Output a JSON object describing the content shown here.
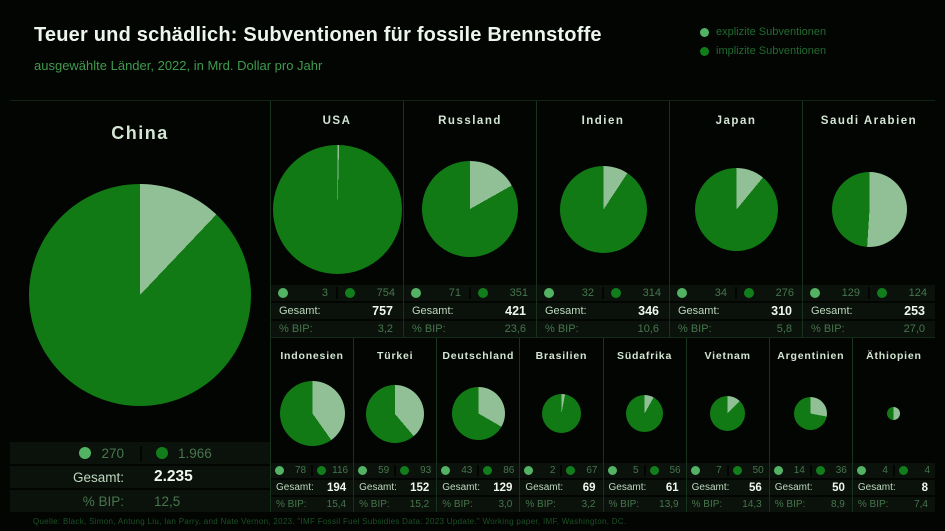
{
  "header": {
    "title": "Teuer und schädlich: Subventionen für fossile Brennstoffe",
    "subtitle": "ausgewählte Länder, 2022, in Mrd. Dollar pro Jahr"
  },
  "legend": {
    "explicit_label": "explizite Subventionen",
    "implicit_label": "implizite Subventionen"
  },
  "labels": {
    "total": "Gesamt:",
    "bip": "% BIP:"
  },
  "footer": {
    "source": "Quelle: Black, Simon, Antung Liu, Ian Parry, and Nate Vernon, 2023. \"IMF Fossil Fuel Subsidies Data: 2023 Update.\" Working paper, IMF, Washington, DC."
  },
  "chart_data": {
    "type": "pie",
    "title": "Teuer und schädlich: Subventionen für fossile Brennstoffe",
    "subtitle": "ausgewählte Länder, 2022, in Mrd. Dollar pro Jahr",
    "unit": "Mrd. Dollar pro Jahr",
    "year": "2022",
    "legend": [
      "explizite Subventionen",
      "implizite Subventionen"
    ],
    "legend_position": "top-right",
    "sizing": "pie area proportional to total; explicit slice starts at 12 o'clock clockwise",
    "colors": {
      "explicit_slice": "#92c096",
      "implicit_slice": "#117a14",
      "explicit_dot": "#53b263",
      "implicit_dot": "#117d1b",
      "background": "#020502"
    },
    "countries": [
      {
        "name": "China",
        "group": "featured",
        "explicit": 270,
        "implicit": 1966,
        "total": 2235,
        "explicit_label": "270",
        "implicit_label": "1.966",
        "total_label": "2.235",
        "bip_percent": "12,5"
      },
      {
        "name": "USA",
        "group": "row1",
        "explicit": 3,
        "implicit": 754,
        "total": 757,
        "explicit_label": "3",
        "implicit_label": "754",
        "total_label": "757",
        "bip_percent": "3,2"
      },
      {
        "name": "Russland",
        "group": "row1",
        "explicit": 71,
        "implicit": 351,
        "total": 421,
        "explicit_label": "71",
        "implicit_label": "351",
        "total_label": "421",
        "bip_percent": "23,6"
      },
      {
        "name": "Indien",
        "group": "row1",
        "explicit": 32,
        "implicit": 314,
        "total": 346,
        "explicit_label": "32",
        "implicit_label": "314",
        "total_label": "346",
        "bip_percent": "10,6"
      },
      {
        "name": "Japan",
        "group": "row1",
        "explicit": 34,
        "implicit": 276,
        "total": 310,
        "explicit_label": "34",
        "implicit_label": "276",
        "total_label": "310",
        "bip_percent": "5,8"
      },
      {
        "name": "Saudi Arabien",
        "group": "row1",
        "explicit": 129,
        "implicit": 124,
        "total": 253,
        "explicit_label": "129",
        "implicit_label": "124",
        "total_label": "253",
        "bip_percent": "27,0"
      },
      {
        "name": "Indonesien",
        "group": "row2",
        "explicit": 78,
        "implicit": 116,
        "total": 194,
        "explicit_label": "78",
        "implicit_label": "116",
        "total_label": "194",
        "bip_percent": "15,4"
      },
      {
        "name": "Türkei",
        "group": "row2",
        "explicit": 59,
        "implicit": 93,
        "total": 152,
        "explicit_label": "59",
        "implicit_label": "93",
        "total_label": "152",
        "bip_percent": "15,2"
      },
      {
        "name": "Deutschland",
        "group": "row2",
        "explicit": 43,
        "implicit": 86,
        "total": 129,
        "explicit_label": "43",
        "implicit_label": "86",
        "total_label": "129",
        "bip_percent": "3,0"
      },
      {
        "name": "Brasilien",
        "group": "row2",
        "explicit": 2,
        "implicit": 67,
        "total": 69,
        "explicit_label": "2",
        "implicit_label": "67",
        "total_label": "69",
        "bip_percent": "3,2"
      },
      {
        "name": "Südafrika",
        "group": "row2",
        "explicit": 5,
        "implicit": 56,
        "total": 61,
        "explicit_label": "5",
        "implicit_label": "56",
        "total_label": "61",
        "bip_percent": "13,9"
      },
      {
        "name": "Vietnam",
        "group": "row2",
        "explicit": 7,
        "implicit": 50,
        "total": 56,
        "explicit_label": "7",
        "implicit_label": "50",
        "total_label": "56",
        "bip_percent": "14,3"
      },
      {
        "name": "Argentinien",
        "group": "row2",
        "explicit": 14,
        "implicit": 36,
        "total": 50,
        "explicit_label": "14",
        "implicit_label": "36",
        "total_label": "50",
        "bip_percent": "8,9"
      },
      {
        "name": "Äthiopien",
        "group": "row2",
        "explicit": 4,
        "implicit": 4,
        "total": 8,
        "explicit_label": "4",
        "implicit_label": "4",
        "total_label": "8",
        "bip_percent": "7,4"
      }
    ]
  }
}
